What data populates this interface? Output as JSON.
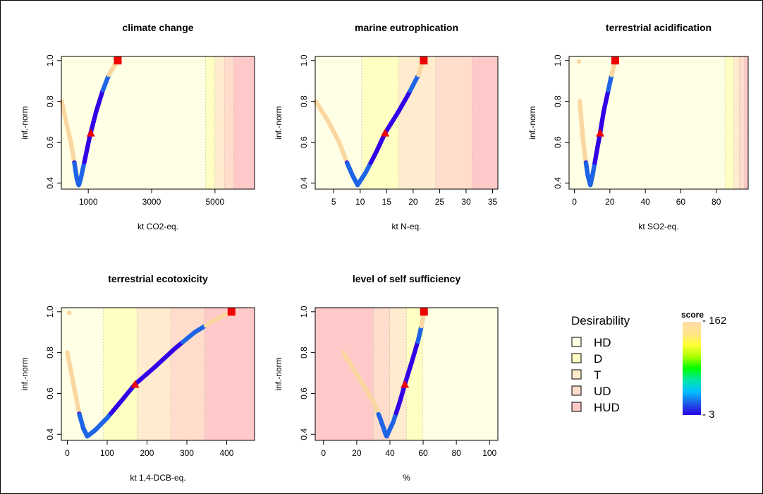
{
  "chart_data": [
    {
      "type": "scatter",
      "title": "climate change",
      "xlabel": "kt CO2-eq.",
      "ylabel": "inf.-norm",
      "xlim": [
        150,
        6250
      ],
      "ylim": [
        0.37,
        1.02
      ],
      "xticks": [
        1000,
        3000,
        5000
      ],
      "xtick_labels": [
        "1000",
        "3000",
        "5000"
      ],
      "yticks": [
        0.4,
        0.6,
        0.8,
        1.0
      ],
      "ytick_labels": [
        "0.4",
        "0.6",
        "0.8",
        "1.0"
      ],
      "zones": [
        {
          "class": "HD",
          "from": 150,
          "to": 4700
        },
        {
          "class": "D",
          "from": 4700,
          "to": 5000
        },
        {
          "class": "T",
          "from": 5000,
          "to": 5300
        },
        {
          "class": "UD",
          "from": 5300,
          "to": 5600
        },
        {
          "class": "HUD",
          "from": 5600,
          "to": 6250
        }
      ],
      "curve": [
        [
          160,
          0.8
        ],
        [
          300,
          0.7
        ],
        [
          450,
          0.6
        ],
        [
          560,
          0.5
        ],
        [
          640,
          0.42
        ],
        [
          700,
          0.39
        ],
        [
          760,
          0.42
        ],
        [
          900,
          0.52
        ],
        [
          1050,
          0.63
        ],
        [
          1250,
          0.75
        ],
        [
          1450,
          0.85
        ],
        [
          1650,
          0.93
        ],
        [
          1920,
          1.0
        ]
      ],
      "optimum": [
        1930,
        1.0
      ],
      "reference": [
        1080,
        0.645
      ]
    },
    {
      "type": "scatter",
      "title": "marine eutrophication",
      "xlabel": "kt N-eq.",
      "ylabel": "inf.-norm",
      "xlim": [
        1.5,
        36
      ],
      "ylim": [
        0.37,
        1.02
      ],
      "xticks": [
        5,
        10,
        15,
        20,
        25,
        30,
        35
      ],
      "xtick_labels": [
        "5",
        "10",
        "15",
        "20",
        "25",
        "30",
        "35"
      ],
      "yticks": [
        0.4,
        0.6,
        0.8,
        1.0
      ],
      "ytick_labels": [
        "0.4",
        "0.6",
        "0.8",
        "1.0"
      ],
      "zones": [
        {
          "class": "HD",
          "from": 1.5,
          "to": 10.3
        },
        {
          "class": "D",
          "from": 10.3,
          "to": 17.3
        },
        {
          "class": "T",
          "from": 17.3,
          "to": 24.3
        },
        {
          "class": "UD",
          "from": 24.3,
          "to": 31.2
        },
        {
          "class": "HUD",
          "from": 31.2,
          "to": 36
        }
      ],
      "curve": [
        [
          1.6,
          0.8
        ],
        [
          4,
          0.7
        ],
        [
          6,
          0.6
        ],
        [
          7.5,
          0.5
        ],
        [
          8.5,
          0.44
        ],
        [
          9.5,
          0.39
        ],
        [
          11,
          0.45
        ],
        [
          13,
          0.55
        ],
        [
          14.7,
          0.645
        ],
        [
          17,
          0.74
        ],
        [
          19,
          0.83
        ],
        [
          21,
          0.93
        ],
        [
          21.9,
          1.0
        ]
      ],
      "optimum": [
        22,
        1.0
      ],
      "reference": [
        14.7,
        0.645
      ]
    },
    {
      "type": "scatter",
      "title": "terrestrial acidification",
      "xlabel": "kt SO2-eq.",
      "ylabel": "inf.-norm",
      "xlim": [
        -3,
        98
      ],
      "ylim": [
        0.37,
        1.02
      ],
      "xticks": [
        0,
        20,
        40,
        60,
        80
      ],
      "xtick_labels": [
        "0",
        "20",
        "40",
        "60",
        "80"
      ],
      "yticks": [
        0.4,
        0.6,
        0.8,
        1.0
      ],
      "ytick_labels": [
        "0.4",
        "0.6",
        "0.8",
        "1.0"
      ],
      "zones": [
        {
          "class": "HD",
          "from": -3,
          "to": 85
        },
        {
          "class": "D",
          "from": 85,
          "to": 90
        },
        {
          "class": "T",
          "from": 90,
          "to": 93
        },
        {
          "class": "UD",
          "from": 93,
          "to": 96
        },
        {
          "class": "HUD",
          "from": 96,
          "to": 98
        }
      ],
      "curve": [
        [
          3,
          0.8
        ],
        [
          4,
          0.7
        ],
        [
          5,
          0.6
        ],
        [
          6.5,
          0.5
        ],
        [
          7.5,
          0.44
        ],
        [
          9,
          0.39
        ],
        [
          10.5,
          0.45
        ],
        [
          12.5,
          0.55
        ],
        [
          14.5,
          0.645
        ],
        [
          16.5,
          0.75
        ],
        [
          19,
          0.85
        ],
        [
          21,
          0.93
        ],
        [
          23,
          1.0
        ]
      ],
      "outlier": [
        2.5,
        0.995
      ],
      "optimum": [
        23,
        1.0
      ],
      "reference": [
        14.5,
        0.645
      ]
    },
    {
      "type": "scatter",
      "title": "terrestrial ecotoxicity",
      "xlabel": "kt 1,4-DCB-eq.",
      "ylabel": "inf.-norm",
      "xlim": [
        -15,
        470
      ],
      "ylim": [
        0.37,
        1.02
      ],
      "xticks": [
        0,
        100,
        200,
        300,
        400
      ],
      "xtick_labels": [
        "0",
        "100",
        "200",
        "300",
        "400"
      ],
      "yticks": [
        0.4,
        0.6,
        0.8,
        1.0
      ],
      "ytick_labels": [
        "0.4",
        "0.6",
        "0.8",
        "1.0"
      ],
      "zones": [
        {
          "class": "HD",
          "from": -15,
          "to": 90
        },
        {
          "class": "D",
          "from": 90,
          "to": 175
        },
        {
          "class": "T",
          "from": 175,
          "to": 260
        },
        {
          "class": "UD",
          "from": 260,
          "to": 345
        },
        {
          "class": "HUD",
          "from": 345,
          "to": 470
        }
      ],
      "curve": [
        [
          0,
          0.8
        ],
        [
          10,
          0.7
        ],
        [
          20,
          0.6
        ],
        [
          30,
          0.5
        ],
        [
          40,
          0.43
        ],
        [
          50,
          0.39
        ],
        [
          70,
          0.42
        ],
        [
          100,
          0.48
        ],
        [
          130,
          0.55
        ],
        [
          170,
          0.645
        ],
        [
          220,
          0.73
        ],
        [
          270,
          0.82
        ],
        [
          320,
          0.9
        ],
        [
          370,
          0.96
        ],
        [
          410,
          1.0
        ]
      ],
      "outlier": [
        5,
        0.995
      ],
      "optimum": [
        412,
        1.0
      ],
      "reference": [
        170,
        0.645
      ]
    },
    {
      "type": "scatter",
      "title": "level of self sufficiency",
      "xlabel": "%",
      "ylabel": "inf.-norm",
      "xlim": [
        -5,
        105
      ],
      "ylim": [
        0.37,
        1.02
      ],
      "xticks": [
        0,
        20,
        40,
        60,
        80,
        100
      ],
      "xtick_labels": [
        "0",
        "20",
        "40",
        "60",
        "80",
        "100"
      ],
      "yticks": [
        0.4,
        0.6,
        0.8,
        1.0
      ],
      "ytick_labels": [
        "0.4",
        "0.6",
        "0.8",
        "1.0"
      ],
      "zones": [
        {
          "class": "HUD",
          "from": -5,
          "to": 30
        },
        {
          "class": "UD",
          "from": 30,
          "to": 40
        },
        {
          "class": "T",
          "from": 40,
          "to": 50
        },
        {
          "class": "D",
          "from": 50,
          "to": 60
        },
        {
          "class": "HD",
          "from": 60,
          "to": 105
        }
      ],
      "curve": [
        [
          12,
          0.8
        ],
        [
          18,
          0.72
        ],
        [
          24,
          0.64
        ],
        [
          30,
          0.56
        ],
        [
          34,
          0.48
        ],
        [
          37,
          0.41
        ],
        [
          38,
          0.39
        ],
        [
          42,
          0.46
        ],
        [
          46,
          0.56
        ],
        [
          49,
          0.645
        ],
        [
          53,
          0.75
        ],
        [
          57,
          0.86
        ],
        [
          59,
          0.93
        ],
        [
          60.5,
          1.0
        ]
      ],
      "optimum": [
        60.5,
        1.0
      ],
      "reference": [
        49,
        0.645
      ]
    }
  ],
  "legend": {
    "title": "Desirability",
    "items": [
      {
        "label": "HD",
        "color": "#FFFFE5"
      },
      {
        "label": "D",
        "color": "#FFFFC4"
      },
      {
        "label": "T",
        "color": "#FFEBCD"
      },
      {
        "label": "UD",
        "color": "#FFDCCB"
      },
      {
        "label": "HUD",
        "color": "#FFC9C9"
      }
    ]
  },
  "colorbar": {
    "title": "score",
    "max_label": "162",
    "min_label": "3",
    "colors": [
      "#2A00E6",
      "#1E5CE6",
      "#00BFFF",
      "#00E6A8",
      "#00FF00",
      "#AAFF00",
      "#FFFF33",
      "#FFE38A",
      "#FFDDA8"
    ]
  },
  "colors": {
    "zone_HD": "#FFFFE5",
    "zone_D": "#FFFFC4",
    "zone_T": "#FFEBCD",
    "zone_UD": "#FFDCCB",
    "zone_HUD": "#FFC9C9",
    "low_score": "#FAD7A0",
    "mid_score": "#1E64E6",
    "high_score": "#3300E6",
    "optimum": "#EE0000",
    "reference": "#EE0000"
  }
}
